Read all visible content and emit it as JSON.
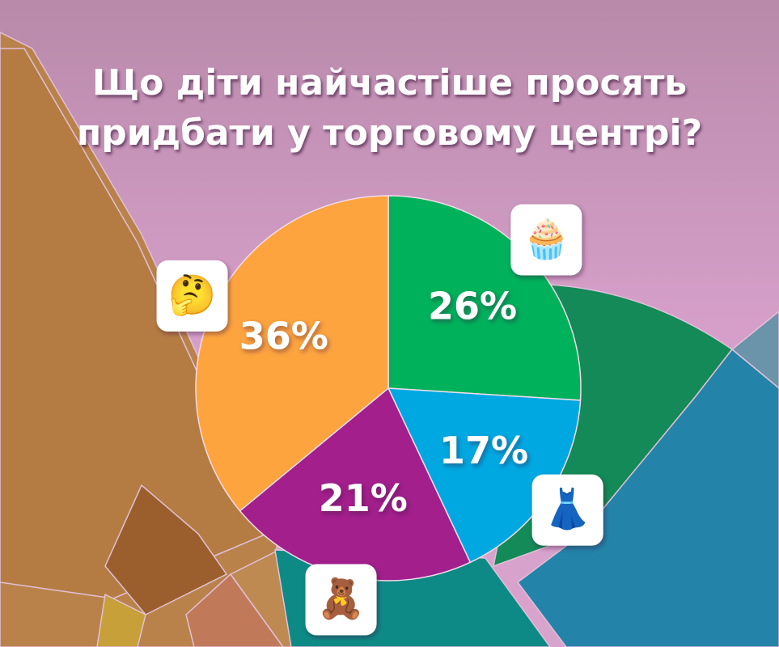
{
  "chart_data": {
    "type": "pie",
    "title": "Що діти найчастіше просять придбати у торговому центрі?",
    "categories": [
      "🧁",
      "👗",
      "🧸",
      "🤔"
    ],
    "values": [
      26,
      17,
      21,
      36
    ],
    "value_labels": [
      "26%",
      "17%",
      "21%",
      "36%"
    ],
    "colors": [
      "#00b15b",
      "#00a8e1",
      "#a21f8c",
      "#fda43f"
    ]
  }
}
